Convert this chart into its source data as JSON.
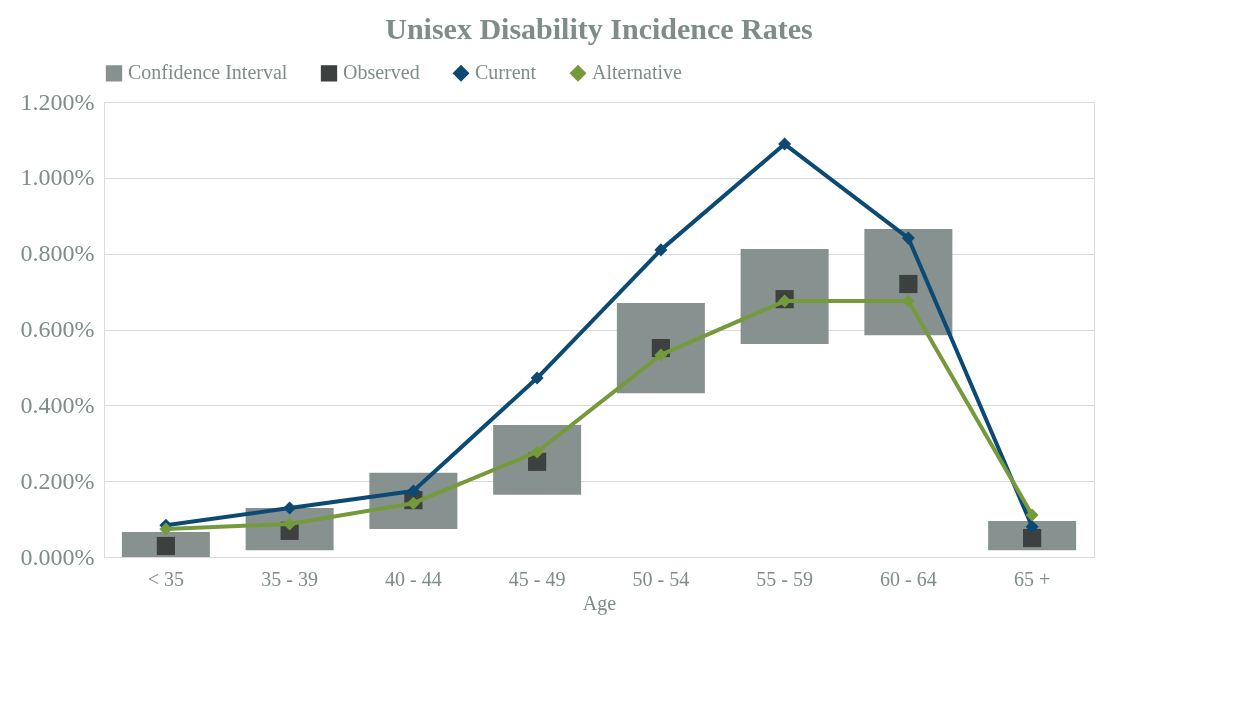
{
  "chart_data": {
    "type": "line",
    "title": "Unisex Disability Incidence Rates",
    "xlabel": "Age",
    "categories": [
      "< 35",
      "35 - 39",
      "40 - 44",
      "45 - 49",
      "50 - 54",
      "55 - 59",
      "60 - 64",
      "65 +"
    ],
    "series": [
      {
        "name": "Confidence Interval",
        "type": "bar",
        "color": "#879290",
        "base": [
          0.0,
          0.018,
          0.074,
          0.164,
          0.432,
          0.562,
          0.585,
          0.018
        ],
        "values": [
          0.066,
          0.111,
          0.148,
          0.184,
          0.238,
          0.25,
          0.28,
          0.077
        ]
      },
      {
        "name": "Observed",
        "type": "scatter",
        "marker": "square",
        "color": "#3c4140",
        "values": [
          0.029,
          0.069,
          0.15,
          0.251,
          0.551,
          0.68,
          0.72,
          0.05
        ]
      },
      {
        "name": "Current",
        "marker": "diamond",
        "color": "#0c4a74",
        "values": [
          0.084,
          0.129,
          0.174,
          0.472,
          0.81,
          1.089,
          0.841,
          0.08
        ]
      },
      {
        "name": "Alternative",
        "marker": "diamond",
        "color": "#759a3c",
        "values": [
          0.074,
          0.087,
          0.142,
          0.277,
          0.533,
          0.675,
          0.675,
          0.111
        ]
      }
    ],
    "ylim": [
      0,
      1.2
    ],
    "yticks": [
      {
        "value": 0,
        "label": "0.000%"
      },
      {
        "value": 0.2,
        "label": "0.200%"
      },
      {
        "value": 0.4,
        "label": "0.400%"
      },
      {
        "value": 0.6,
        "label": "0.600%"
      },
      {
        "value": 0.8,
        "label": "0.800%"
      },
      {
        "value": 1.0,
        "label": "1.000%"
      },
      {
        "value": 1.2,
        "label": "1.200%"
      }
    ],
    "grid": "y",
    "legend": "top",
    "line_style": "solid"
  }
}
